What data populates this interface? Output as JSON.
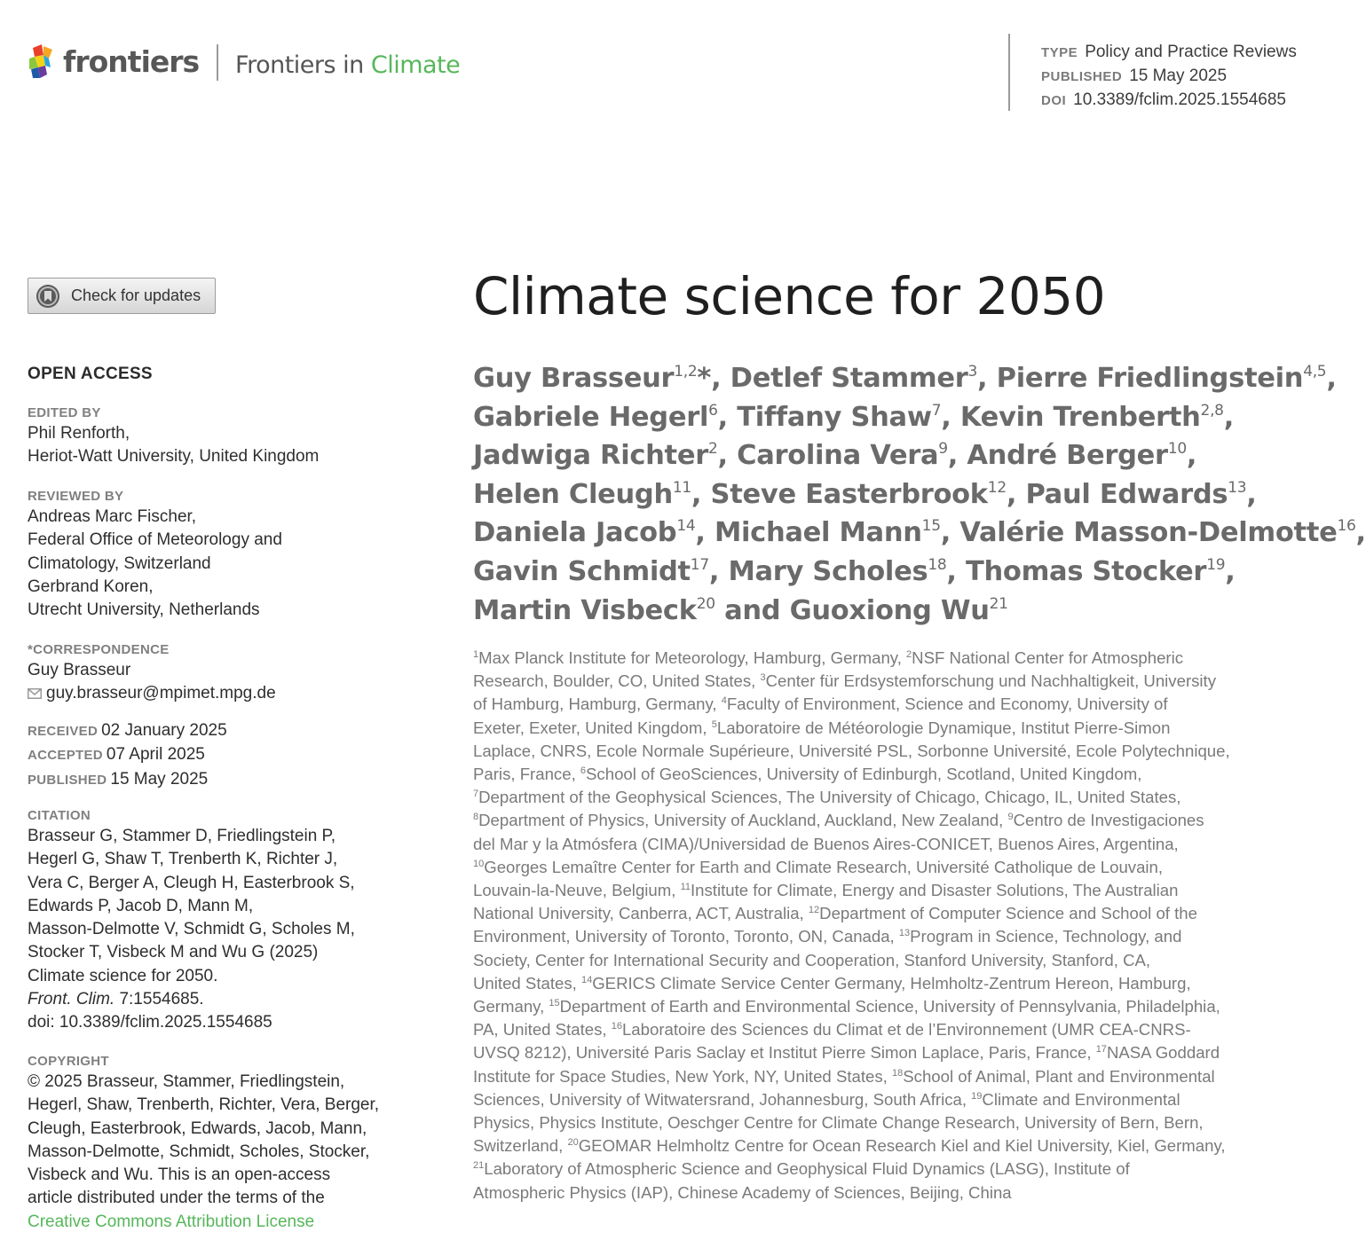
{
  "header": {
    "publisher": "frontiers",
    "journal_prefix": "Frontiers in ",
    "journal_accent": "Climate",
    "accent_color": "#56b75a",
    "meta": [
      {
        "key": "TYPE",
        "value": "Policy and Practice Reviews"
      },
      {
        "key": "PUBLISHED",
        "value": "15 May 2025"
      },
      {
        "key": "DOI",
        "value": "10.3389/fclim.2025.1554685"
      }
    ]
  },
  "updates_button": {
    "label": "Check for updates",
    "icon": "bookmark-icon"
  },
  "sidebar": {
    "open_access": "OPEN ACCESS",
    "edited_by": {
      "heading": "EDITED BY",
      "lines": [
        "Phil Renforth,",
        "Heriot-Watt University, United Kingdom"
      ]
    },
    "reviewed_by": {
      "heading": "REVIEWED BY",
      "lines": [
        "Andreas Marc Fischer,",
        "Federal Office of Meteorology and",
        "Climatology, Switzerland",
        "Gerbrand Koren,",
        "Utrecht University, Netherlands"
      ]
    },
    "correspondence": {
      "heading": "*CORRESPONDENCE",
      "name": "Guy Brasseur",
      "email": "guy.brasseur@mpimet.mpg.de",
      "email_icon": "envelope-icon"
    },
    "dates": [
      {
        "key": "RECEIVED",
        "value": "02 January 2025"
      },
      {
        "key": "ACCEPTED",
        "value": "07 April 2025"
      },
      {
        "key": "PUBLISHED",
        "value": "15 May 2025"
      }
    ],
    "citation": {
      "heading": "CITATION",
      "lines": [
        "Brasseur G, Stammer D, Friedlingstein P,",
        "Hegerl G, Shaw T, Trenberth K, Richter J,",
        "Vera C, Berger A, Cleugh H, Easterbrook S,",
        "Edwards P, Jacob D, Mann M,",
        "Masson-Delmotte V, Schmidt G, Scholes M,",
        "Stocker T, Visbeck M and Wu G (2025)",
        "Climate science for 2050."
      ],
      "journal_abbrev": "Front. Clim.",
      "volume": " 7:1554685.",
      "doi_line": "doi: 10.3389/fclim.2025.1554685"
    },
    "copyright": {
      "heading": "COPYRIGHT",
      "lines": [
        "© 2025 Brasseur, Stammer, Friedlingstein,",
        "Hegerl, Shaw, Trenberth, Richter, Vera, Berger,",
        "Cleugh, Easterbrook, Edwards, Jacob, Mann,",
        "Masson-Delmotte, Schmidt, Scholes, Stocker,",
        "Visbeck and Wu. This is an open-access",
        "article distributed under the terms of the"
      ],
      "license_link": "Creative Commons Attribution License"
    }
  },
  "article": {
    "title": "Climate science for 2050",
    "author_lines": [
      [
        {
          "t": "Guy Brasseur",
          "s": "1,2"
        },
        {
          "t": "*, Detlef Stammer",
          "s": "3"
        },
        {
          "t": ", Pierre Friedlingstein",
          "s": "4,5"
        },
        {
          "t": ","
        }
      ],
      [
        {
          "t": "Gabriele Hegerl",
          "s": "6"
        },
        {
          "t": ", Tiffany Shaw",
          "s": "7"
        },
        {
          "t": ", Kevin Trenberth",
          "s": "2,8"
        },
        {
          "t": ","
        }
      ],
      [
        {
          "t": "Jadwiga Richter",
          "s": "2"
        },
        {
          "t": ", Carolina Vera",
          "s": "9"
        },
        {
          "t": ", André Berger",
          "s": "10"
        },
        {
          "t": ","
        }
      ],
      [
        {
          "t": "Helen Cleugh",
          "s": "11"
        },
        {
          "t": ", Steve Easterbrook",
          "s": "12"
        },
        {
          "t": ", Paul Edwards",
          "s": "13"
        },
        {
          "t": ","
        }
      ],
      [
        {
          "t": "Daniela Jacob",
          "s": "14"
        },
        {
          "t": ", Michael Mann",
          "s": "15"
        },
        {
          "t": ", Valérie Masson-Delmotte",
          "s": "16"
        },
        {
          "t": ","
        }
      ],
      [
        {
          "t": "Gavin Schmidt",
          "s": "17"
        },
        {
          "t": ", Mary Scholes",
          "s": "18"
        },
        {
          "t": ", Thomas Stocker",
          "s": "19"
        },
        {
          "t": ","
        }
      ],
      [
        {
          "t": "Martin Visbeck",
          "s": "20"
        },
        {
          "t": " and Guoxiong Wu",
          "s": "21"
        }
      ]
    ],
    "affiliation_lines": [
      [
        {
          "s": "1"
        },
        {
          "t": "Max Planck Institute for Meteorology, Hamburg, Germany, "
        },
        {
          "s": "2"
        },
        {
          "t": "NSF National Center for Atmospheric"
        }
      ],
      [
        {
          "t": "Research, Boulder, CO, United States, "
        },
        {
          "s": "3"
        },
        {
          "t": "Center für Erdsystemforschung und Nachhaltigkeit, University"
        }
      ],
      [
        {
          "t": "of Hamburg, Hamburg, Germany, "
        },
        {
          "s": "4"
        },
        {
          "t": "Faculty of Environment, Science and Economy, University of"
        }
      ],
      [
        {
          "t": "Exeter, Exeter, United Kingdom, "
        },
        {
          "s": "5"
        },
        {
          "t": "Laboratoire de Météorologie Dynamique, Institut Pierre-Simon"
        }
      ],
      [
        {
          "t": "Laplace, CNRS, Ecole Normale Supérieure, Université PSL, Sorbonne Université, Ecole Polytechnique,"
        }
      ],
      [
        {
          "t": "Paris, France, "
        },
        {
          "s": "6"
        },
        {
          "t": "School of GeoSciences, University of Edinburgh, Scotland, United Kingdom,"
        }
      ],
      [
        {
          "s": "7"
        },
        {
          "t": "Department of the Geophysical Sciences, The University of Chicago, Chicago, IL, United States,"
        }
      ],
      [
        {
          "s": "8"
        },
        {
          "t": "Department of Physics, University of Auckland, Auckland, New Zealand, "
        },
        {
          "s": "9"
        },
        {
          "t": "Centro de Investigaciones"
        }
      ],
      [
        {
          "t": "del Mar y la Atmósfera (CIMA)/Universidad de Buenos Aires-CONICET, Buenos Aires, Argentina,"
        }
      ],
      [
        {
          "s": "10"
        },
        {
          "t": "Georges Lemaître Center for Earth and Climate Research, Université Catholique de Louvain,"
        }
      ],
      [
        {
          "t": "Louvain-la-Neuve, Belgium, "
        },
        {
          "s": "11"
        },
        {
          "t": "Institute for Climate, Energy and Disaster Solutions, The Australian"
        }
      ],
      [
        {
          "t": "National University, Canberra, ACT, Australia, "
        },
        {
          "s": "12"
        },
        {
          "t": "Department of Computer Science and School of the"
        }
      ],
      [
        {
          "t": "Environment, University of Toronto, Toronto, ON, Canada, "
        },
        {
          "s": "13"
        },
        {
          "t": "Program in Science, Technology, and"
        }
      ],
      [
        {
          "t": "Society, Center for International Security and Cooperation, Stanford University, Stanford, CA,"
        }
      ],
      [
        {
          "t": "United States, "
        },
        {
          "s": "14"
        },
        {
          "t": "GERICS Climate Service Center Germany, Helmholtz-Zentrum Hereon, Hamburg,"
        }
      ],
      [
        {
          "t": "Germany, "
        },
        {
          "s": "15"
        },
        {
          "t": "Department of Earth and Environmental Science, University of Pennsylvania, Philadelphia,"
        }
      ],
      [
        {
          "t": "PA, United States, "
        },
        {
          "s": "16"
        },
        {
          "t": "Laboratoire des Sciences du Climat et de l’Environnement (UMR CEA-CNRS-"
        }
      ],
      [
        {
          "t": "UVSQ 8212), Université Paris Saclay et Institut Pierre Simon Laplace, Paris, France, "
        },
        {
          "s": "17"
        },
        {
          "t": "NASA Goddard"
        }
      ],
      [
        {
          "t": "Institute for Space Studies, New York, NY, United States, "
        },
        {
          "s": "18"
        },
        {
          "t": "School of Animal, Plant and Environmental"
        }
      ],
      [
        {
          "t": "Sciences, University of Witwatersrand, Johannesburg, South Africa, "
        },
        {
          "s": "19"
        },
        {
          "t": "Climate and Environmental"
        }
      ],
      [
        {
          "t": "Physics, Physics Institute, Oeschger Centre for Climate Change Research, University of Bern, Bern,"
        }
      ],
      [
        {
          "t": "Switzerland, "
        },
        {
          "s": "20"
        },
        {
          "t": "GEOMAR Helmholtz Centre for Ocean Research Kiel and Kiel University, Kiel, Germany,"
        }
      ],
      [
        {
          "s": "21"
        },
        {
          "t": "Laboratory of Atmospheric Science and Geophysical Fluid Dynamics (LASG), Institute of"
        }
      ],
      [
        {
          "t": "Atmospheric Physics (IAP), Chinese Academy of Sciences, Beijing, China"
        }
      ]
    ]
  }
}
